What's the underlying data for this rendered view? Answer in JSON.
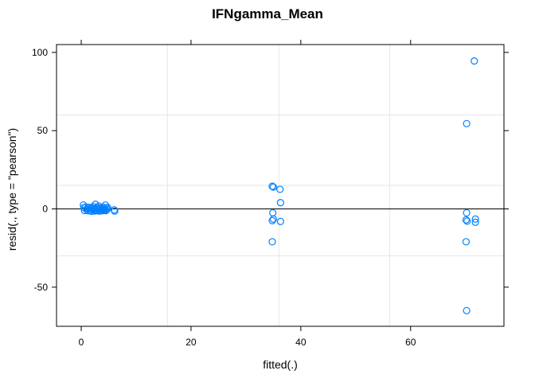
{
  "chart_data": {
    "type": "scatter",
    "title": "IFNgamma_Mean",
    "xlabel": "fitted(.)",
    "ylabel": "resid(., type = \"pearson\")",
    "xlim": [
      -4.5,
      77
    ],
    "ylim": [
      -75,
      105
    ],
    "x_ticks": [
      0,
      20,
      40,
      60
    ],
    "x_tick_labels": [
      "0",
      "20",
      "40",
      "60"
    ],
    "y_ticks": [
      -50,
      0,
      50,
      100
    ],
    "y_tick_labels": [
      "-50",
      "0",
      "50",
      "100"
    ],
    "grid": true,
    "x_grid": [
      15.7,
      36.0,
      56.2
    ],
    "y_grid": [
      -30,
      15,
      60
    ],
    "reference_line_y": 0,
    "point_color": "#0080ff",
    "points": [
      {
        "x": 0.4,
        "y": 2.5
      },
      {
        "x": 0.5,
        "y": 0.8
      },
      {
        "x": 0.6,
        "y": -1.0
      },
      {
        "x": 0.8,
        "y": 1.2
      },
      {
        "x": 1.0,
        "y": -0.5
      },
      {
        "x": 1.1,
        "y": 0.4
      },
      {
        "x": 1.3,
        "y": -1.2
      },
      {
        "x": 1.4,
        "y": 1.0
      },
      {
        "x": 1.6,
        "y": -0.8
      },
      {
        "x": 1.7,
        "y": 0.3
      },
      {
        "x": 1.9,
        "y": -1.5
      },
      {
        "x": 2.0,
        "y": 0.6
      },
      {
        "x": 2.1,
        "y": -0.4
      },
      {
        "x": 2.2,
        "y": 1.5
      },
      {
        "x": 2.3,
        "y": -1.0
      },
      {
        "x": 2.4,
        "y": 0.2
      },
      {
        "x": 2.5,
        "y": -1.3
      },
      {
        "x": 2.6,
        "y": 3.0
      },
      {
        "x": 2.7,
        "y": -0.6
      },
      {
        "x": 2.8,
        "y": 0.9
      },
      {
        "x": 2.9,
        "y": -1.1
      },
      {
        "x": 3.0,
        "y": 0.5
      },
      {
        "x": 3.1,
        "y": -0.2
      },
      {
        "x": 3.2,
        "y": 1.8
      },
      {
        "x": 3.3,
        "y": -1.4
      },
      {
        "x": 3.4,
        "y": 0.1
      },
      {
        "x": 3.5,
        "y": -0.9
      },
      {
        "x": 3.6,
        "y": 0.7
      },
      {
        "x": 3.7,
        "y": -1.2
      },
      {
        "x": 3.8,
        "y": 0.4
      },
      {
        "x": 3.9,
        "y": -0.3
      },
      {
        "x": 4.0,
        "y": 1.1
      },
      {
        "x": 4.1,
        "y": -1.0
      },
      {
        "x": 4.2,
        "y": 0.2
      },
      {
        "x": 4.3,
        "y": -0.7
      },
      {
        "x": 4.4,
        "y": 2.5
      },
      {
        "x": 4.5,
        "y": -1.1
      },
      {
        "x": 4.6,
        "y": 0.6
      },
      {
        "x": 4.7,
        "y": -0.4
      },
      {
        "x": 4.8,
        "y": 0.9
      },
      {
        "x": 6.0,
        "y": -0.6
      },
      {
        "x": 6.1,
        "y": -1.4
      },
      {
        "x": 34.8,
        "y": 14.5
      },
      {
        "x": 35.0,
        "y": 14.0
      },
      {
        "x": 36.2,
        "y": 12.5
      },
      {
        "x": 36.3,
        "y": 4.0
      },
      {
        "x": 34.9,
        "y": -2.5
      },
      {
        "x": 35.0,
        "y": -6.5
      },
      {
        "x": 34.8,
        "y": -7.5
      },
      {
        "x": 36.3,
        "y": -8.0
      },
      {
        "x": 34.8,
        "y": -21.0
      },
      {
        "x": 71.6,
        "y": 94.5
      },
      {
        "x": 70.2,
        "y": 54.5
      },
      {
        "x": 70.2,
        "y": -2.5
      },
      {
        "x": 71.8,
        "y": -6.5
      },
      {
        "x": 70.1,
        "y": -7.0
      },
      {
        "x": 70.3,
        "y": -7.8
      },
      {
        "x": 71.8,
        "y": -8.5
      },
      {
        "x": 70.1,
        "y": -21.0
      },
      {
        "x": 70.2,
        "y": -65.0
      }
    ]
  }
}
